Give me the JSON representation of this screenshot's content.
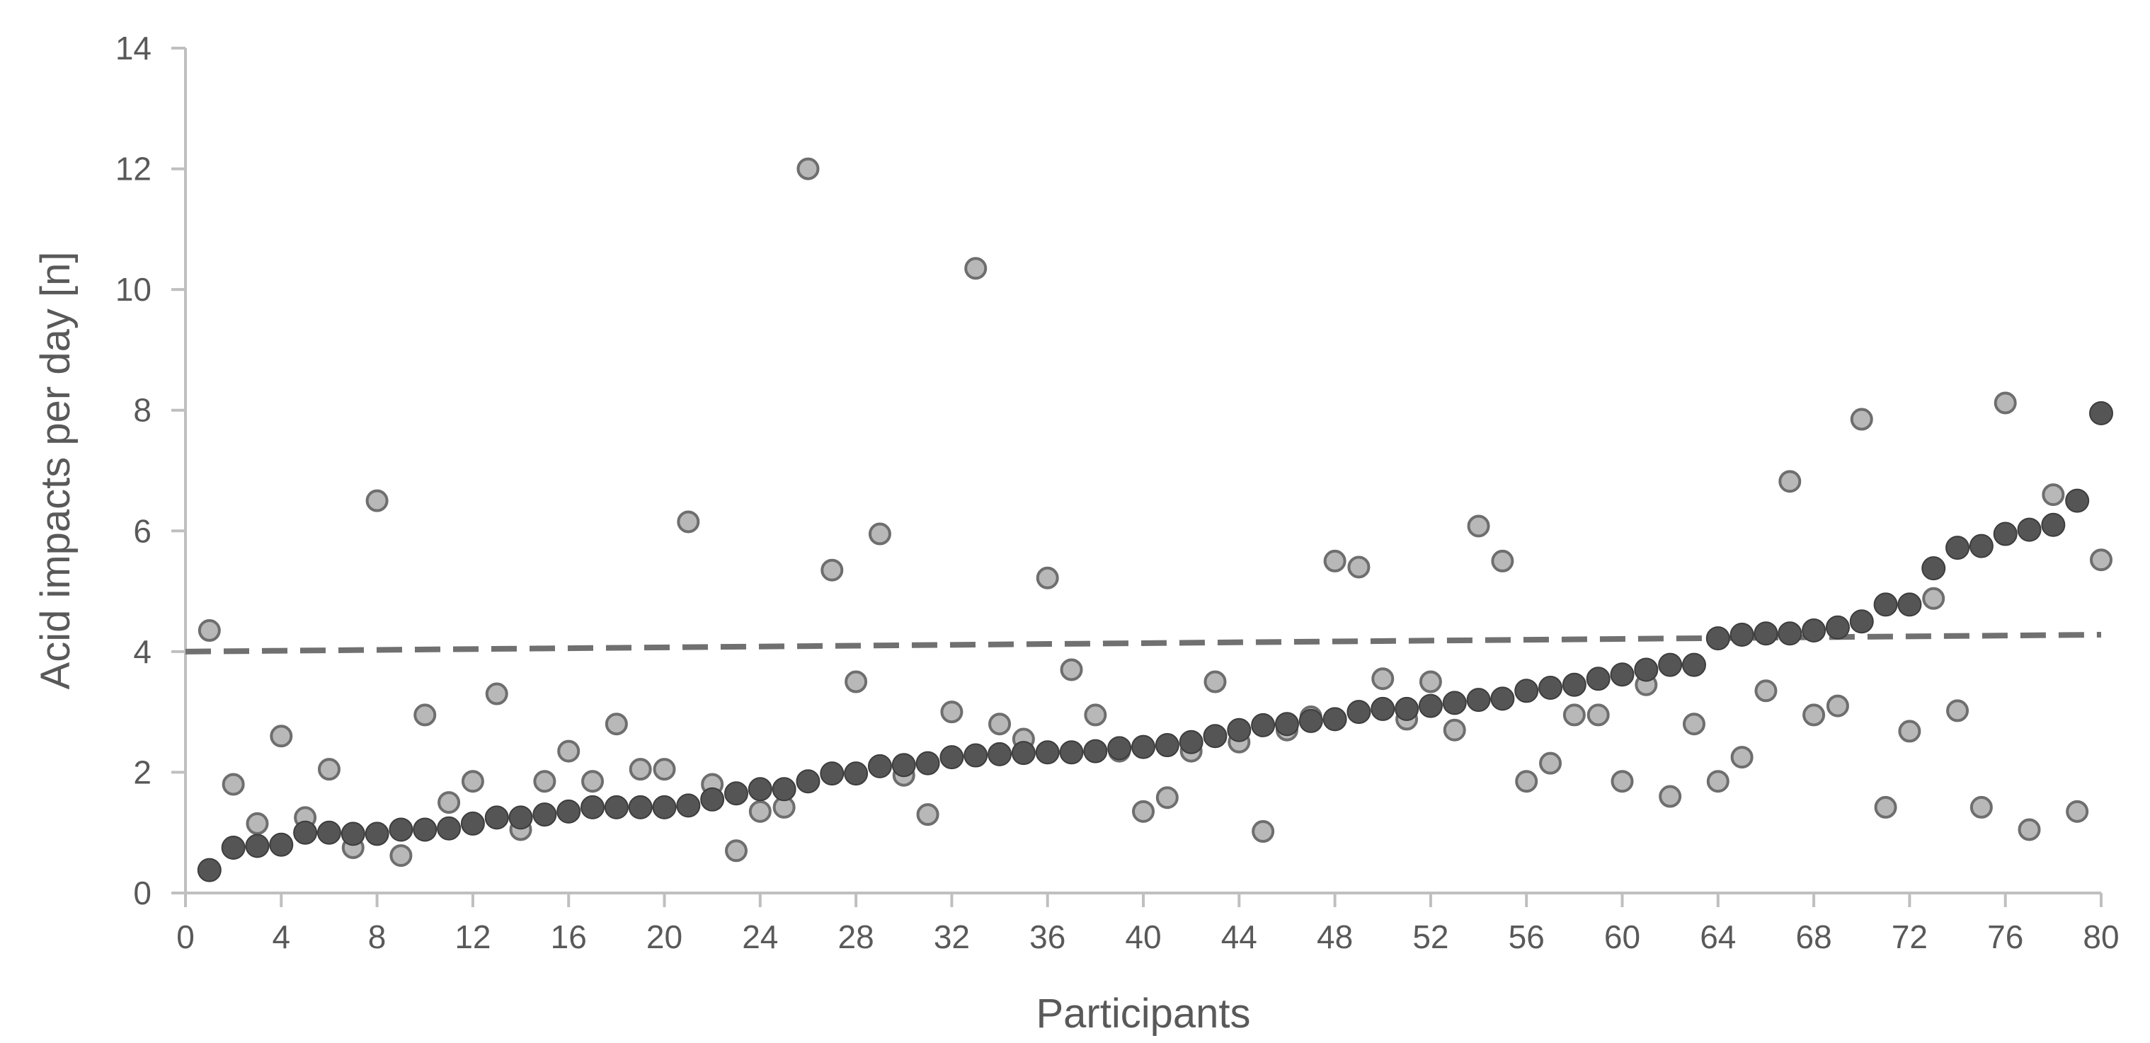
{
  "chart_data": {
    "type": "scatter",
    "title": "",
    "xlabel": "Participants",
    "ylabel": "Acid impacts per day [n]",
    "xlim": [
      0,
      80
    ],
    "ylim": [
      0,
      14
    ],
    "x_ticks": [
      0,
      4,
      8,
      12,
      16,
      20,
      24,
      28,
      32,
      36,
      40,
      44,
      48,
      52,
      56,
      60,
      64,
      68,
      72,
      76,
      80
    ],
    "y_ticks": [
      0,
      2,
      4,
      6,
      8,
      10,
      12,
      14
    ],
    "grid": false,
    "legend": "none",
    "series": [
      {
        "style": "light-gray markers",
        "x": [
          1,
          2,
          3,
          4,
          5,
          6,
          7,
          8,
          9,
          10,
          11,
          12,
          13,
          14,
          15,
          16,
          17,
          18,
          19,
          20,
          21,
          22,
          23,
          24,
          25,
          26,
          27,
          28,
          29,
          30,
          31,
          32,
          33,
          34,
          35,
          36,
          37,
          38,
          39,
          40,
          41,
          42,
          43,
          44,
          45,
          46,
          47,
          48,
          49,
          50,
          51,
          52,
          53,
          54,
          55,
          56,
          57,
          58,
          59,
          60,
          61,
          62,
          63,
          64,
          65,
          66,
          67,
          68,
          69,
          70,
          71,
          72,
          73,
          74,
          75,
          76,
          77,
          78,
          79,
          80
        ],
        "y": [
          4.35,
          1.8,
          1.15,
          2.6,
          1.25,
          2.05,
          0.75,
          6.5,
          0.62,
          2.95,
          1.5,
          1.85,
          3.3,
          1.05,
          1.85,
          2.35,
          1.85,
          2.8,
          2.05,
          2.05,
          6.15,
          1.8,
          0.7,
          1.35,
          1.42,
          12.0,
          5.35,
          3.5,
          5.95,
          1.95,
          1.3,
          3.0,
          10.35,
          2.8,
          2.55,
          5.22,
          3.7,
          2.95,
          2.35,
          1.35,
          1.58,
          2.35,
          3.5,
          2.5,
          1.02,
          2.7,
          2.92,
          5.5,
          5.4,
          3.55,
          2.88,
          3.5,
          2.7,
          6.08,
          5.5,
          1.85,
          2.15,
          2.95,
          2.95,
          1.85,
          3.45,
          1.6,
          2.8,
          1.85,
          2.25,
          3.35,
          6.82,
          2.95,
          3.1,
          7.85,
          1.42,
          2.68,
          4.88,
          3.02,
          1.42,
          8.12,
          1.05,
          6.6,
          1.35,
          5.52
        ]
      },
      {
        "style": "dark markers (sorted)",
        "x": [
          1,
          2,
          3,
          4,
          5,
          6,
          7,
          8,
          9,
          10,
          11,
          12,
          13,
          14,
          15,
          16,
          17,
          18,
          19,
          20,
          21,
          22,
          23,
          24,
          25,
          26,
          27,
          28,
          29,
          30,
          31,
          32,
          33,
          34,
          35,
          36,
          37,
          38,
          39,
          40,
          41,
          42,
          43,
          44,
          45,
          46,
          47,
          48,
          49,
          50,
          51,
          52,
          53,
          54,
          55,
          56,
          57,
          58,
          59,
          60,
          61,
          62,
          63,
          64,
          65,
          66,
          67,
          68,
          69,
          70,
          71,
          72,
          73,
          74,
          75,
          76,
          77,
          78,
          79,
          80
        ],
        "y": [
          0.38,
          0.75,
          0.78,
          0.8,
          1.0,
          1.0,
          0.98,
          0.98,
          1.05,
          1.05,
          1.07,
          1.15,
          1.25,
          1.25,
          1.3,
          1.35,
          1.42,
          1.42,
          1.42,
          1.42,
          1.45,
          1.55,
          1.65,
          1.72,
          1.72,
          1.85,
          1.98,
          1.98,
          2.1,
          2.12,
          2.15,
          2.25,
          2.28,
          2.3,
          2.32,
          2.33,
          2.33,
          2.35,
          2.4,
          2.42,
          2.45,
          2.5,
          2.6,
          2.7,
          2.78,
          2.8,
          2.85,
          2.88,
          3.0,
          3.05,
          3.05,
          3.1,
          3.15,
          3.2,
          3.22,
          3.35,
          3.4,
          3.45,
          3.55,
          3.62,
          3.7,
          3.78,
          3.78,
          4.22,
          4.28,
          4.3,
          4.3,
          4.35,
          4.4,
          4.5,
          4.78,
          4.78,
          5.38,
          5.72,
          5.75,
          5.95,
          6.02,
          6.1,
          6.5,
          7.95
        ]
      },
      {
        "style": "dashed trend line",
        "x": [
          0,
          80
        ],
        "y": [
          4.0,
          4.28
        ]
      }
    ]
  }
}
